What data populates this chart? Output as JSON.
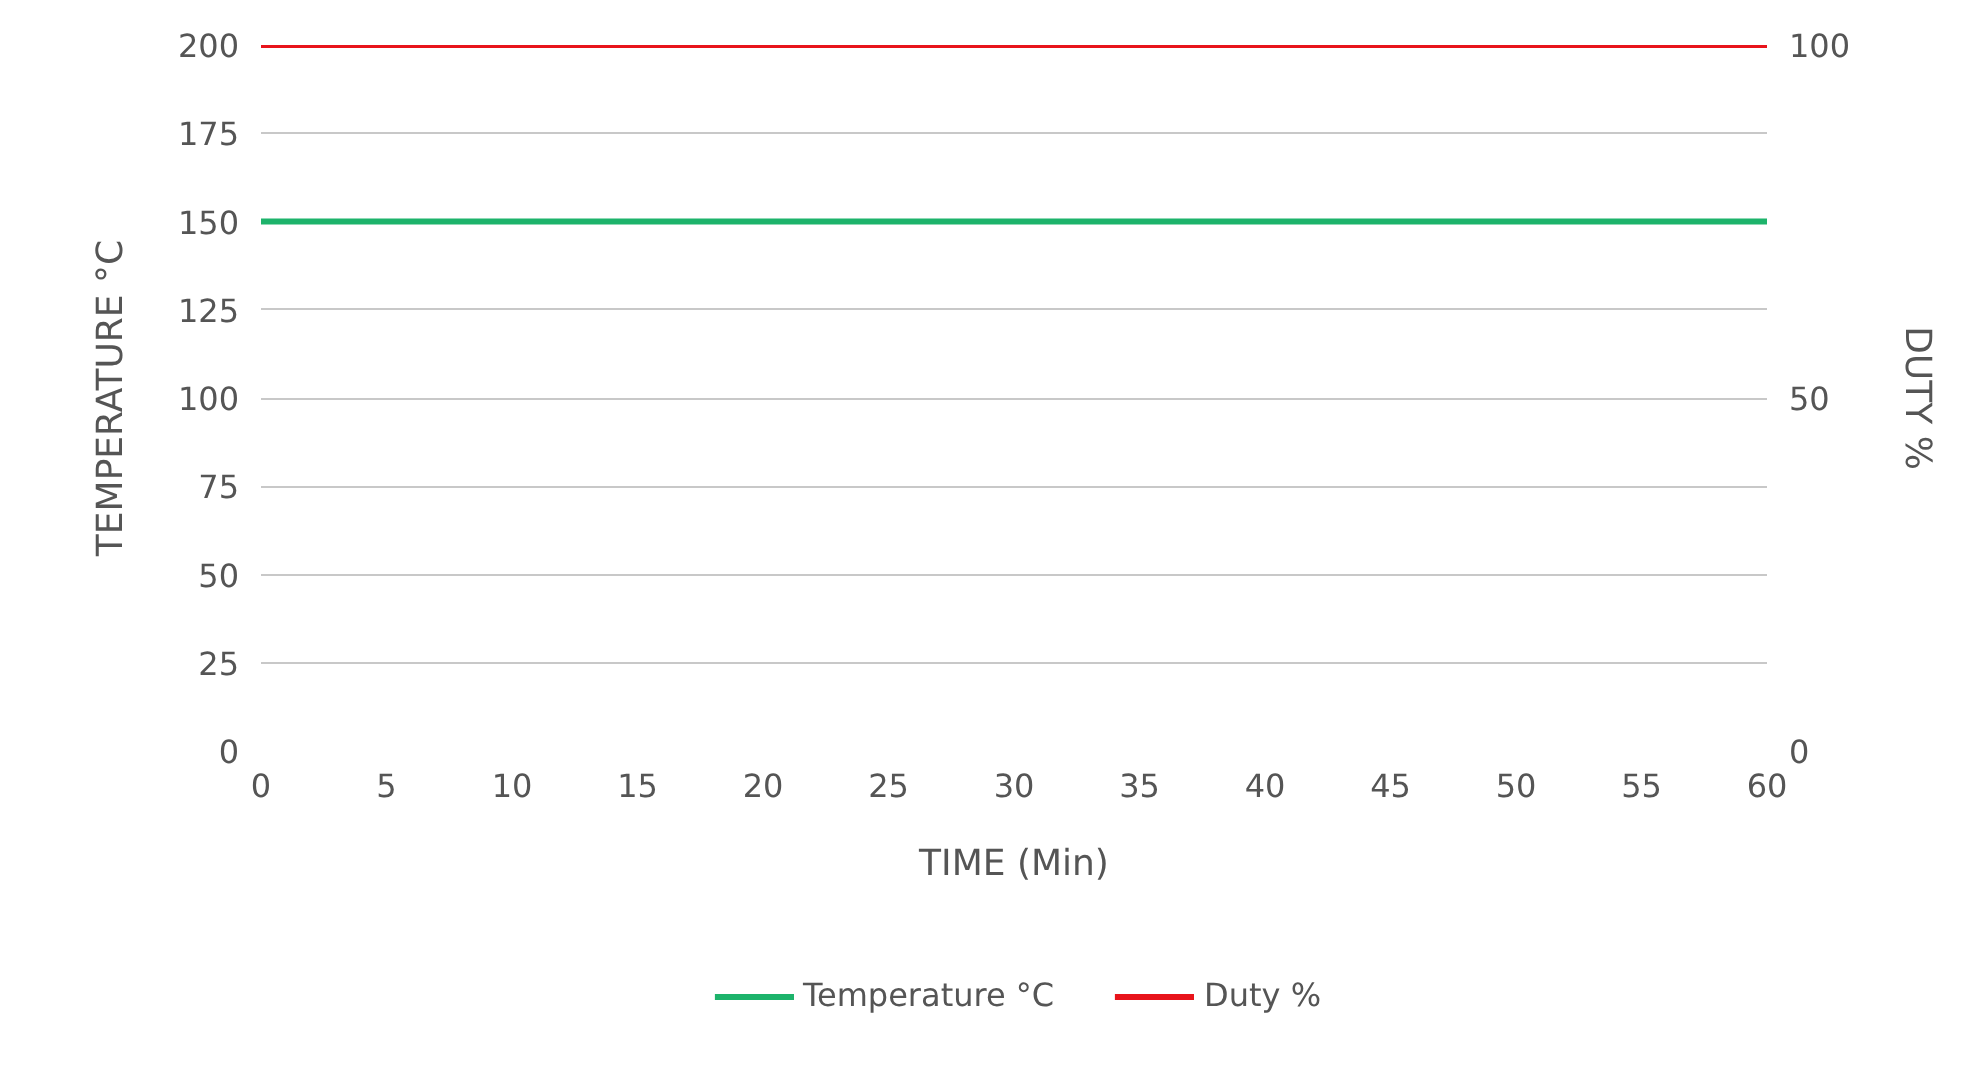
{
  "chart_data": {
    "type": "line",
    "xlabel": "TIME (Min)",
    "ylabel": "TEMPERATURE °C",
    "y2label": "DUTY %",
    "x": [
      0,
      60
    ],
    "series": [
      {
        "name": "Temperature °C",
        "color": "#1db36b",
        "values": [
          150,
          150
        ]
      },
      {
        "name": "Duty %",
        "color": "#e8141b",
        "values": [
          100,
          100
        ],
        "axis": "y2"
      }
    ],
    "xlim": [
      0,
      60
    ],
    "xticks": [
      0,
      5,
      10,
      15,
      20,
      25,
      30,
      35,
      40,
      45,
      50,
      55,
      60
    ],
    "ylim": [
      0,
      200
    ],
    "yticks": [
      0,
      25,
      50,
      75,
      100,
      125,
      150,
      175,
      200
    ],
    "y2lim": [
      0,
      100
    ],
    "y2ticks": [
      0,
      50,
      100
    ],
    "grid": "y",
    "legend": "bottom",
    "marker": "none",
    "line_style": "solid"
  }
}
